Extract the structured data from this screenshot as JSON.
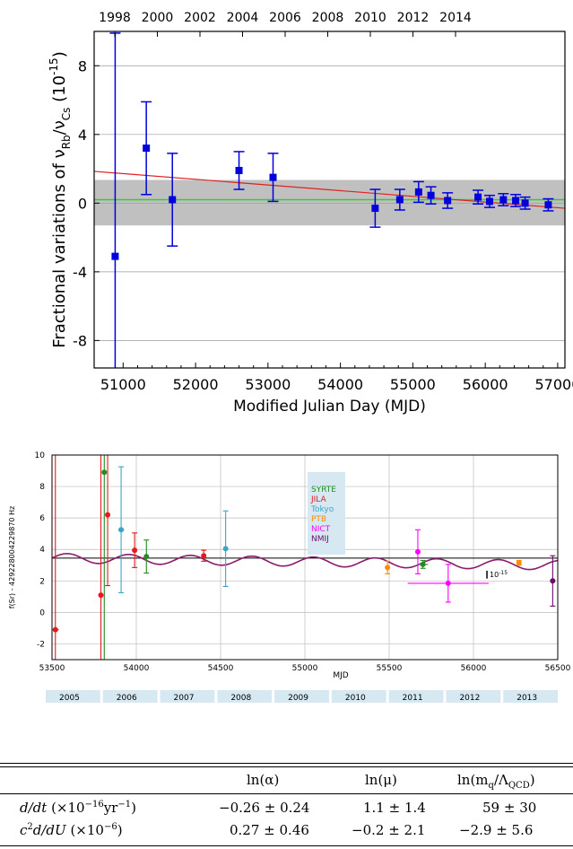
{
  "chart_data": [
    {
      "type": "scatter",
      "ylabel_base": "Fractional variations of ν",
      "ylabel_sub1": "Rb",
      "ylabel_mid": "/ν",
      "ylabel_sub2": "Cs",
      "ylabel_unit": " (10",
      "ylabel_exp": "-15",
      "ylabel_close": ")",
      "xlabel": "Modified Julian Day (MJD)",
      "xlim": [
        50600,
        57100
      ],
      "ylim": [
        -9.6,
        10
      ],
      "x_ticks": [
        51000,
        52000,
        53000,
        54000,
        55000,
        56000,
        57000
      ],
      "y_ticks": [
        -8,
        -4,
        0,
        4,
        8
      ],
      "top_axis_ticks": [
        "1998",
        "2000",
        "2002",
        "2004",
        "2006",
        "2008",
        "2010",
        "2012",
        "2014"
      ],
      "grid": "horizontal",
      "band": [
        -1.3,
        1.35
      ],
      "fit_line_green": {
        "x": [
          50600,
          57100
        ],
        "y": [
          0.2,
          0.2
        ]
      },
      "fit_line_red": {
        "x": [
          50600,
          57100
        ],
        "y": [
          1.85,
          -0.3
        ]
      },
      "points": [
        {
          "x": 50890,
          "y": -3.1,
          "err": 13.0
        },
        {
          "x": 51320,
          "y": 3.2,
          "err": 2.7
        },
        {
          "x": 51680,
          "y": 0.2,
          "err": 2.7
        },
        {
          "x": 52600,
          "y": 1.9,
          "err": 1.1
        },
        {
          "x": 53070,
          "y": 1.5,
          "err": 1.4
        },
        {
          "x": 54480,
          "y": -0.3,
          "err": 1.1
        },
        {
          "x": 54820,
          "y": 0.2,
          "err": 0.6
        },
        {
          "x": 55080,
          "y": 0.65,
          "err": 0.6
        },
        {
          "x": 55250,
          "y": 0.45,
          "err": 0.5
        },
        {
          "x": 55480,
          "y": 0.15,
          "err": 0.45
        },
        {
          "x": 55900,
          "y": 0.35,
          "err": 0.4
        },
        {
          "x": 56060,
          "y": 0.1,
          "err": 0.35
        },
        {
          "x": 56250,
          "y": 0.2,
          "err": 0.35
        },
        {
          "x": 56420,
          "y": 0.15,
          "err": 0.35
        },
        {
          "x": 56550,
          "y": 0.0,
          "err": 0.35
        },
        {
          "x": 56870,
          "y": -0.1,
          "err": 0.35
        }
      ]
    },
    {
      "type": "scatter",
      "ylabel": "f(Sr) - 429228004229870 Hz",
      "xlabel": "MJD",
      "xlim": [
        53500,
        56500
      ],
      "ylim": [
        -3,
        10
      ],
      "x_ticks": [
        53500,
        54000,
        54500,
        55000,
        55500,
        56000,
        56500
      ],
      "y_ticks": [
        -2,
        0,
        2,
        4,
        6,
        8,
        10
      ],
      "grid": "both",
      "legend": "top-center",
      "years": [
        "2005",
        "2006",
        "2007",
        "2008",
        "2009",
        "2010",
        "2011",
        "2012",
        "2013"
      ],
      "annotation": "10",
      "annotation_exp": "-15",
      "mean_line": 3.45,
      "series": [
        {
          "name": "SYRTE",
          "color": "#228B22",
          "points": [
            {
              "x": 53810,
              "y": 8.9,
              "err": 12,
              "xerr": 0
            },
            {
              "x": 54060,
              "y": 3.55,
              "err": 1.05,
              "xerr": 0
            },
            {
              "x": 55700,
              "y": 3.05,
              "err": 0.25,
              "xerr": 30
            }
          ]
        },
        {
          "name": "JILA",
          "color": "#e41a1c",
          "points": [
            {
              "x": 53520,
              "y": -1.1,
              "err": 14,
              "xerr": 20
            },
            {
              "x": 53790,
              "y": 1.1,
              "err": 14,
              "xerr": 0
            },
            {
              "x": 53830,
              "y": 6.2,
              "err": 4.5,
              "xerr": 0
            },
            {
              "x": 53990,
              "y": 3.95,
              "err": 1.1,
              "xerr": 0
            },
            {
              "x": 54400,
              "y": 3.6,
              "err": 0.35,
              "xerr": 0
            }
          ]
        },
        {
          "name": "Tokyo",
          "color": "#3aa6c4",
          "points": [
            {
              "x": 53910,
              "y": 5.25,
              "err": 4.0,
              "xerr": 18
            },
            {
              "x": 54530,
              "y": 4.05,
              "err": 2.4,
              "xerr": 0
            }
          ]
        },
        {
          "name": "PTB",
          "color": "#ff8c00",
          "points": [
            {
              "x": 55490,
              "y": 2.85,
              "err": 0.4,
              "xerr": 0
            },
            {
              "x": 56270,
              "y": 3.15,
              "err": 0.15,
              "xerr": 15
            }
          ]
        },
        {
          "name": "NICT",
          "color": "#ff00ff",
          "points": [
            {
              "x": 55670,
              "y": 3.85,
              "err": 1.4,
              "xerr": 0
            },
            {
              "x": 55850,
              "y": 1.85,
              "err": 1.2,
              "xerr": 240
            }
          ]
        },
        {
          "name": "NMIJ",
          "color": "#6a0d6a",
          "points": [
            {
              "x": 56470,
              "y": 2.0,
              "err": 1.6,
              "xerr": 0
            }
          ]
        }
      ]
    }
  ],
  "table": {
    "headers": [
      "ln(α)",
      "ln(μ)",
      "ln(m",
      "q",
      "/Λ",
      "QCD",
      ")"
    ],
    "rows": [
      {
        "label": "d/dt",
        "label_unit": " (×10",
        "label_exp": "−16",
        "label_tail": "yr",
        "label_tail_exp": "−1",
        "label_close": ")",
        "values": [
          "−0.26 ± 0.24",
          "1.1 ± 1.4",
          "59 ± 30"
        ]
      },
      {
        "label": "c",
        "label_exp": "2",
        "label_mid": "d/dU",
        "label_unit": " (×10",
        "label_exp2": "−6",
        "label_close": ")",
        "values": [
          "0.27 ± 0.46",
          "−0.2 ± 2.1",
          "−2.9 ± 5.6"
        ]
      }
    ]
  }
}
